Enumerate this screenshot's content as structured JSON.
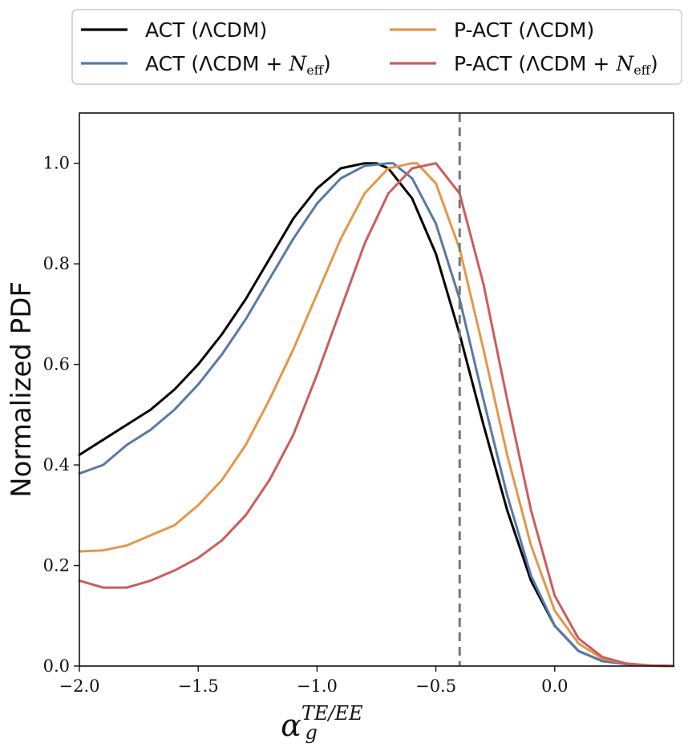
{
  "chart_data": {
    "type": "line",
    "title": "",
    "xlabel": {
      "base": "α",
      "sup": "TE/EE",
      "sub": "g"
    },
    "ylabel": "Normalized PDF",
    "xlim": [
      -2.0,
      0.5
    ],
    "ylim": [
      0.0,
      1.1
    ],
    "xticks": [
      -2.0,
      -1.5,
      -1.0,
      -0.5,
      0.0
    ],
    "xtick_labels": [
      "−2.0",
      "−1.5",
      "−1.0",
      "−0.5",
      "0.0"
    ],
    "yticks": [
      0.0,
      0.2,
      0.4,
      0.6,
      0.8,
      1.0
    ],
    "ytick_labels": [
      "0.0",
      "0.2",
      "0.4",
      "0.6",
      "0.8",
      "1.0"
    ],
    "grid": false,
    "legend_position": "top, above plot, two columns",
    "vertical_line": {
      "x": -0.4,
      "style": "dashed",
      "color": "#777777"
    },
    "series": [
      {
        "name": "ACT (ΛCDM)",
        "label_parts": [
          "ACT (ΛCDM)"
        ],
        "color": "#000000",
        "x": [
          -2.0,
          -1.9,
          -1.8,
          -1.7,
          -1.6,
          -1.5,
          -1.4,
          -1.3,
          -1.2,
          -1.1,
          -1.0,
          -0.9,
          -0.8,
          -0.75,
          -0.7,
          -0.6,
          -0.5,
          -0.4,
          -0.3,
          -0.2,
          -0.1,
          0.0,
          0.1,
          0.2,
          0.3,
          0.4,
          0.5
        ],
        "y": [
          0.42,
          0.45,
          0.48,
          0.51,
          0.55,
          0.6,
          0.66,
          0.73,
          0.81,
          0.89,
          0.95,
          0.99,
          1.0,
          1.0,
          0.99,
          0.93,
          0.82,
          0.66,
          0.48,
          0.31,
          0.17,
          0.08,
          0.03,
          0.01,
          0.004,
          0.001,
          0.0
        ]
      },
      {
        "name": "ACT (ΛCDM + Neff)",
        "label_parts": [
          "ACT (ΛCDM + ",
          "N",
          "eff",
          ")"
        ],
        "color": "#5879a8",
        "x": [
          -2.0,
          -1.9,
          -1.8,
          -1.7,
          -1.6,
          -1.5,
          -1.4,
          -1.3,
          -1.2,
          -1.1,
          -1.0,
          -0.9,
          -0.8,
          -0.7,
          -0.68,
          -0.6,
          -0.5,
          -0.4,
          -0.3,
          -0.2,
          -0.1,
          0.0,
          0.1,
          0.2,
          0.3,
          0.4,
          0.5
        ],
        "y": [
          0.383,
          0.4,
          0.44,
          0.47,
          0.51,
          0.56,
          0.62,
          0.69,
          0.77,
          0.85,
          0.92,
          0.97,
          0.995,
          1.0,
          1.0,
          0.97,
          0.88,
          0.73,
          0.53,
          0.34,
          0.18,
          0.08,
          0.03,
          0.01,
          0.004,
          0.001,
          0.0
        ]
      },
      {
        "name": "P-ACT (ΛCDM)",
        "label_parts": [
          "P-ACT (ΛCDM)"
        ],
        "color": "#e4974a",
        "x": [
          -2.0,
          -1.9,
          -1.8,
          -1.7,
          -1.6,
          -1.5,
          -1.4,
          -1.3,
          -1.2,
          -1.1,
          -1.0,
          -0.9,
          -0.8,
          -0.7,
          -0.6,
          -0.58,
          -0.5,
          -0.4,
          -0.3,
          -0.2,
          -0.1,
          0.0,
          0.1,
          0.2,
          0.3,
          0.4,
          0.5
        ],
        "y": [
          0.228,
          0.23,
          0.24,
          0.26,
          0.28,
          0.32,
          0.37,
          0.44,
          0.53,
          0.63,
          0.74,
          0.85,
          0.94,
          0.99,
          1.0,
          1.0,
          0.96,
          0.83,
          0.63,
          0.42,
          0.24,
          0.11,
          0.045,
          0.015,
          0.005,
          0.001,
          0.0
        ]
      },
      {
        "name": "P-ACT (ΛCDM + Neff)",
        "label_parts": [
          "P-ACT (ΛCDM + ",
          "N",
          "eff",
          ")"
        ],
        "color": "#cd5c5c",
        "x": [
          -2.0,
          -1.9,
          -1.8,
          -1.7,
          -1.6,
          -1.5,
          -1.4,
          -1.3,
          -1.2,
          -1.1,
          -1.0,
          -0.9,
          -0.8,
          -0.7,
          -0.6,
          -0.5,
          -0.4,
          -0.3,
          -0.2,
          -0.1,
          0.0,
          0.1,
          0.2,
          0.3,
          0.4,
          0.5
        ],
        "y": [
          0.17,
          0.156,
          0.156,
          0.17,
          0.19,
          0.215,
          0.25,
          0.3,
          0.37,
          0.46,
          0.58,
          0.71,
          0.84,
          0.94,
          0.99,
          1.0,
          0.94,
          0.76,
          0.53,
          0.31,
          0.14,
          0.055,
          0.018,
          0.005,
          0.001,
          0.0
        ]
      }
    ]
  }
}
